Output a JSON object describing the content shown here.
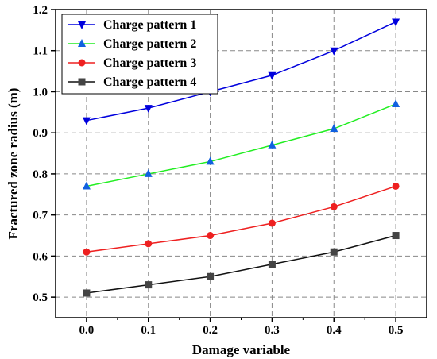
{
  "chart_data": {
    "type": "line",
    "title": "",
    "xlabel": "Damage variable",
    "ylabel": "Fractured zone radius (m)",
    "x": [
      0.0,
      0.1,
      0.2,
      0.3,
      0.4,
      0.5
    ],
    "x_tick_labels": [
      "0.0",
      "0.1",
      "0.2",
      "0.3",
      "0.4",
      "0.5"
    ],
    "y_tick_labels": [
      "0.5",
      "0.6",
      "0.7",
      "0.8",
      "0.9",
      "1.0",
      "1.1",
      "1.2"
    ],
    "xlim": [
      -0.05,
      0.55
    ],
    "ylim": [
      0.45,
      1.2
    ],
    "grid": true,
    "legend_position": "top-left",
    "series": [
      {
        "name": "Charge pattern 1",
        "values": [
          0.93,
          0.96,
          1.0,
          1.04,
          1.1,
          1.17
        ],
        "color": "#0000dd",
        "marker": "triangle-down"
      },
      {
        "name": "Charge pattern 2",
        "values": [
          0.77,
          0.8,
          0.83,
          0.87,
          0.91,
          0.97
        ],
        "color": "#22ee22",
        "marker": "triangle-up",
        "marker_color": "#1060e0"
      },
      {
        "name": "Charge pattern 3",
        "values": [
          0.61,
          0.63,
          0.65,
          0.68,
          0.72,
          0.77
        ],
        "color": "#ee2020",
        "marker": "circle"
      },
      {
        "name": "Charge pattern 4",
        "values": [
          0.51,
          0.53,
          0.55,
          0.58,
          0.61,
          0.65
        ],
        "color": "#111111",
        "marker": "square",
        "marker_color": "#444444"
      }
    ]
  }
}
